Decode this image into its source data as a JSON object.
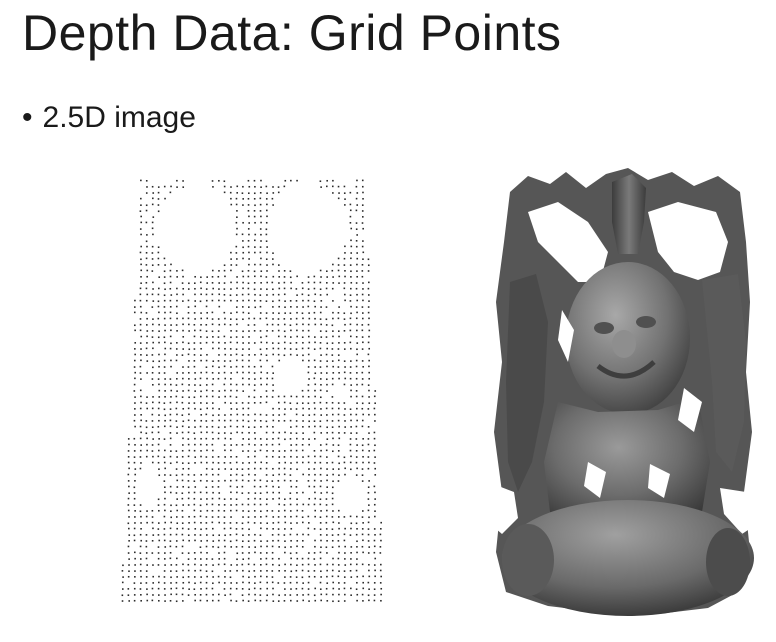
{
  "slide": {
    "title": "Depth Data: Grid Points",
    "bullets": [
      {
        "marker": "•",
        "text": "2.5D image"
      }
    ]
  },
  "figures": {
    "point_cloud": {
      "description_icon": "grid-point-cloud-image",
      "dot_color": "#2b2b2b"
    },
    "rendered_surface": {
      "description_icon": "shaded-depth-surface-image",
      "base_color": "#6a6a6a"
    }
  }
}
